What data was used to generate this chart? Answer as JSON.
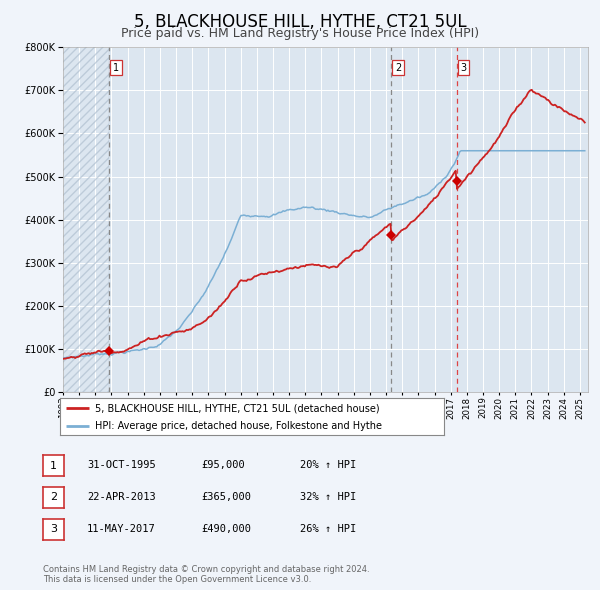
{
  "title": "5, BLACKHOUSE HILL, HYTHE, CT21 5UL",
  "subtitle": "Price paid vs. HM Land Registry's House Price Index (HPI)",
  "title_fontsize": 12,
  "subtitle_fontsize": 9,
  "background_color": "#f0f4fa",
  "plot_bg_color": "#dce6f0",
  "grid_color": "#ffffff",
  "hatch_color": "#c8d4e4",
  "ylim": [
    0,
    800000
  ],
  "yticks": [
    0,
    100000,
    200000,
    300000,
    400000,
    500000,
    600000,
    700000,
    800000
  ],
  "ytick_labels": [
    "£0",
    "£100K",
    "£200K",
    "£300K",
    "£400K",
    "£500K",
    "£600K",
    "£700K",
    "£800K"
  ],
  "xlim_start": 1993.0,
  "xlim_end": 2025.5,
  "xticks": [
    1993,
    1994,
    1995,
    1996,
    1997,
    1998,
    1999,
    2000,
    2001,
    2002,
    2003,
    2004,
    2005,
    2006,
    2007,
    2008,
    2009,
    2010,
    2011,
    2012,
    2013,
    2014,
    2015,
    2016,
    2017,
    2018,
    2019,
    2020,
    2021,
    2022,
    2023,
    2024,
    2025
  ],
  "hpi_color": "#7bafd4",
  "price_color": "#cc2222",
  "sale_marker_color": "#cc0000",
  "sales": [
    {
      "year": 1995.83,
      "price": 95000,
      "label": "1",
      "vline_style": "dashed_gray"
    },
    {
      "year": 2013.31,
      "price": 365000,
      "label": "2",
      "vline_style": "dashed_gray"
    },
    {
      "year": 2017.36,
      "price": 490000,
      "label": "3",
      "vline_style": "dashed_red"
    }
  ],
  "legend_entries": [
    "5, BLACKHOUSE HILL, HYTHE, CT21 5UL (detached house)",
    "HPI: Average price, detached house, Folkestone and Hythe"
  ],
  "table_rows": [
    {
      "num": "1",
      "date": "31-OCT-1995",
      "price": "£95,000",
      "hpi": "20% ↑ HPI"
    },
    {
      "num": "2",
      "date": "22-APR-2013",
      "price": "£365,000",
      "hpi": "32% ↑ HPI"
    },
    {
      "num": "3",
      "date": "11-MAY-2017",
      "price": "£490,000",
      "hpi": "26% ↑ HPI"
    }
  ],
  "footnote": "Contains HM Land Registry data © Crown copyright and database right 2024.\nThis data is licensed under the Open Government Licence v3.0."
}
